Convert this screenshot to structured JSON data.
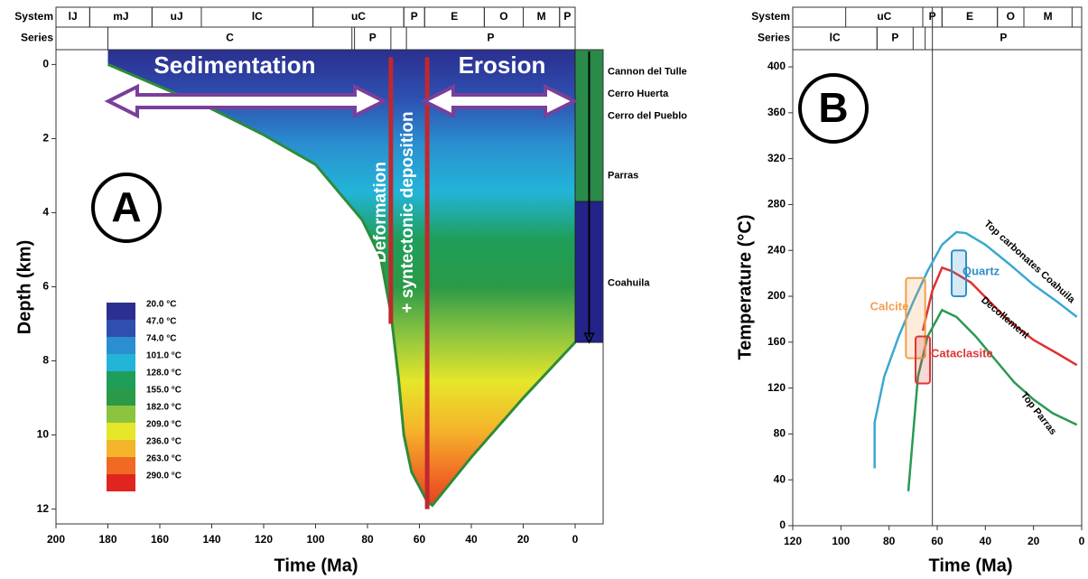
{
  "chart_data": [
    {
      "type": "burial",
      "panel": "A",
      "x_label": "Time (Ma)",
      "y_label": "Depth (km)",
      "xlim": [
        200,
        0
      ],
      "xticks": [
        200,
        180,
        160,
        140,
        120,
        100,
        80,
        60,
        40,
        20,
        0
      ],
      "ylim": [
        12.4,
        -0.4
      ],
      "yticks": [
        0,
        2,
        4,
        6,
        8,
        10,
        12
      ],
      "system_label": "System",
      "series_label": "Series",
      "systems": [
        {
          "label": "lJ",
          "span": [
            200,
            187
          ]
        },
        {
          "label": "mJ",
          "span": [
            187,
            163
          ]
        },
        {
          "label": "uJ",
          "span": [
            163,
            144
          ]
        },
        {
          "label": "lC",
          "span": [
            144,
            101
          ]
        },
        {
          "label": "uC",
          "span": [
            101,
            66
          ]
        },
        {
          "label": "P",
          "span": [
            66,
            58
          ]
        },
        {
          "label": "E",
          "span": [
            58,
            35
          ]
        },
        {
          "label": "O",
          "span": [
            35,
            20
          ]
        },
        {
          "label": "M",
          "span": [
            20,
            6
          ]
        },
        {
          "label": "P",
          "span": [
            6,
            0
          ]
        }
      ],
      "epochs": [
        {
          "label": "C",
          "span": [
            180,
            86
          ]
        },
        {
          "label": "P",
          "span": [
            85,
            71
          ]
        },
        {
          "label": "P",
          "span": [
            65,
            0
          ]
        }
      ],
      "basement": {
        "color": "#2e8b3a",
        "x": [
          180,
          160,
          140,
          120,
          100,
          82,
          75,
          71,
          68,
          66,
          63,
          60,
          57,
          55,
          40,
          20,
          0
        ],
        "values": [
          0,
          0.6,
          1.2,
          1.9,
          2.7,
          4.2,
          5.2,
          6.7,
          8.5,
          10.0,
          11.0,
          11.4,
          11.8,
          11.9,
          10.6,
          9.0,
          7.5
        ]
      },
      "colorbar": {
        "ticks": [
          {
            "value": 20,
            "label": "20.0 °C"
          },
          {
            "value": 47,
            "label": "47.0 °C"
          },
          {
            "value": 74,
            "label": "74.0 °C"
          },
          {
            "value": 101,
            "label": "101.0 °C"
          },
          {
            "value": 128,
            "label": "128.0 °C"
          },
          {
            "value": 155,
            "label": "155.0 °C"
          },
          {
            "value": 182,
            "label": "182.0 °C"
          },
          {
            "value": 209,
            "label": "209.0 °C"
          },
          {
            "value": 236,
            "label": "236.0 °C"
          },
          {
            "value": 263,
            "label": "263.0 °C"
          },
          {
            "value": 290,
            "label": "290.0 °C"
          }
        ],
        "colors": [
          "#2b2f8f",
          "#2e4fb0",
          "#2a8fd0",
          "#22b5d8",
          "#1f9e5a",
          "#2a9a48",
          "#8cc43f",
          "#e6e62a",
          "#f5b52a",
          "#f06a25",
          "#e0251f"
        ]
      },
      "annotations": {
        "sedimentation": "Sedimentation",
        "erosion": "Erosion",
        "deformation": [
          "Deformation",
          "+ syntectonic deposition"
        ]
      },
      "events": [
        {
          "x": 71,
          "top": -0.2,
          "base": 7.0
        },
        {
          "x": 57,
          "top": -0.2,
          "base": 12.0
        }
      ],
      "event_color": "#c0282d",
      "well": {
        "units": [
          {
            "color": "#2a8a4a",
            "top": -0.4,
            "base": 3.7
          },
          {
            "color": "#23238a",
            "top": 3.7,
            "base": 7.5
          }
        ],
        "formations": [
          {
            "name": "Cannon del Tulle",
            "depth": 0.2
          },
          {
            "name": "Cerro Huerta",
            "depth": 0.8
          },
          {
            "name": "Cerro del Pueblo",
            "depth": 1.4
          },
          {
            "name": "Parras",
            "depth": 3.0
          },
          {
            "name": "Coahuila",
            "depth": 5.9
          }
        ]
      }
    },
    {
      "type": "line",
      "panel": "B",
      "x_label": "Time (Ma)",
      "y_label": "Temperature (°C)",
      "xlim": [
        120,
        0
      ],
      "xticks": [
        120,
        100,
        80,
        60,
        40,
        20,
        0
      ],
      "ylim": [
        0,
        415
      ],
      "yticks": [
        0,
        40,
        80,
        120,
        160,
        200,
        240,
        280,
        320,
        360,
        400
      ],
      "system_label": "System",
      "series_label": "Series",
      "systems": [
        {
          "label": "uC",
          "span": [
            98,
            66
          ]
        },
        {
          "label": "P",
          "span": [
            66,
            58
          ]
        },
        {
          "label": "E",
          "span": [
            58,
            35
          ]
        },
        {
          "label": "O",
          "span": [
            35,
            24
          ]
        },
        {
          "label": "M",
          "span": [
            24,
            4
          ]
        }
      ],
      "epochs": [
        {
          "label": "lC",
          "span": [
            120,
            85
          ]
        },
        {
          "label": "P",
          "span": [
            85,
            70
          ]
        },
        {
          "label": "P",
          "span": [
            65,
            0
          ]
        }
      ],
      "reference_x": 62,
      "series": [
        {
          "name": "Top carbonates Coahuila",
          "color": "#3aa8d0",
          "x": [
            86,
            86,
            82,
            76,
            70,
            64,
            58,
            52,
            48,
            40,
            30,
            20,
            10,
            2
          ],
          "values": [
            50,
            90,
            130,
            165,
            195,
            222,
            245,
            256,
            255,
            245,
            228,
            210,
            195,
            182
          ]
        },
        {
          "name": "Decollement",
          "color": "#e03030",
          "x": [
            66,
            62,
            58,
            54,
            46,
            38,
            30,
            20,
            10,
            2
          ],
          "values": [
            170,
            205,
            225,
            222,
            212,
            195,
            178,
            162,
            150,
            140
          ]
        },
        {
          "name": "Top Parras",
          "color": "#2a9a50",
          "x": [
            72,
            70,
            68,
            64,
            58,
            52,
            44,
            36,
            28,
            20,
            12,
            2
          ],
          "values": [
            30,
            80,
            130,
            165,
            188,
            182,
            165,
            145,
            125,
            110,
            98,
            88
          ]
        }
      ],
      "boxes": [
        {
          "name": "Calcite",
          "color": "#f0a050",
          "x": [
            73,
            65
          ],
          "y": [
            146,
            216
          ]
        },
        {
          "name": "Quartz",
          "color": "#2f8fc8",
          "x": [
            54,
            48
          ],
          "y": [
            200,
            240
          ]
        },
        {
          "name": "Cataclasite",
          "color": "#e03535",
          "x": [
            69,
            63
          ],
          "y": [
            124,
            165
          ]
        }
      ]
    }
  ]
}
